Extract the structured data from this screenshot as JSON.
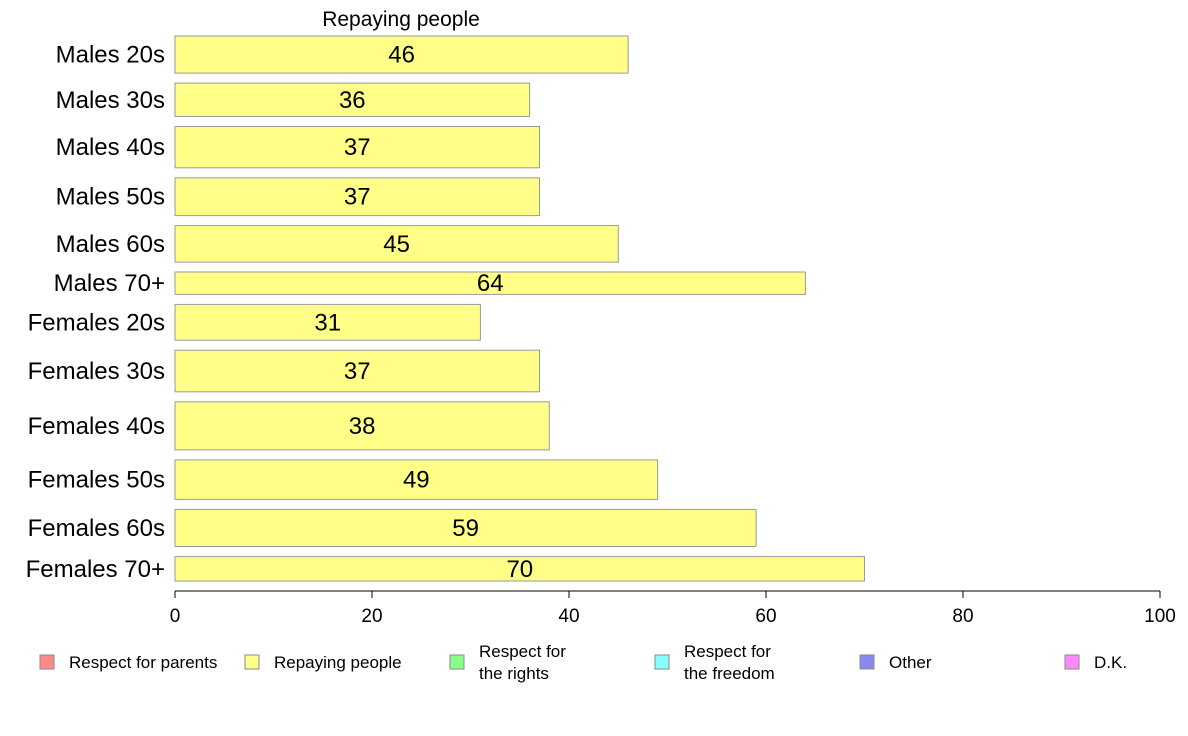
{
  "chart_data": {
    "type": "bar",
    "orientation": "horizontal",
    "title": "Repaying people",
    "xlabel": "",
    "ylabel": "",
    "xlim": [
      0,
      100
    ],
    "xticks": [
      0,
      20,
      40,
      60,
      80,
      100
    ],
    "grid": false,
    "categories": [
      "Males 20s",
      "Males 30s",
      "Males 40s",
      "Males 50s",
      "Males 60s",
      "Males 70+",
      "Females 20s",
      "Females 30s",
      "Females 40s",
      "Females 50s",
      "Females 60s",
      "Females 70+"
    ],
    "values": [
      46,
      36,
      37,
      37,
      45,
      64,
      31,
      37,
      38,
      49,
      59,
      70
    ],
    "category_weights": [
      1.08,
      0.97,
      1.2,
      1.1,
      1.06,
      0.65,
      1.04,
      1.21,
      1.4,
      1.15,
      1.08,
      0.71
    ],
    "bar_color": "#ffff88",
    "bar_edge_color": "#999999",
    "legend": {
      "placement": "bottom",
      "items": [
        {
          "label": "Respect for parents",
          "color": "#ff8888"
        },
        {
          "label": "Repaying people",
          "color": "#ffff88"
        },
        {
          "label": "Respect for\nthe rights",
          "color": "#88ff88"
        },
        {
          "label": "Respect for\nthe freedom",
          "color": "#88ffff"
        },
        {
          "label": "Other",
          "color": "#8888ee"
        },
        {
          "label": "D.K.",
          "color": "#ff88ff"
        }
      ]
    }
  }
}
